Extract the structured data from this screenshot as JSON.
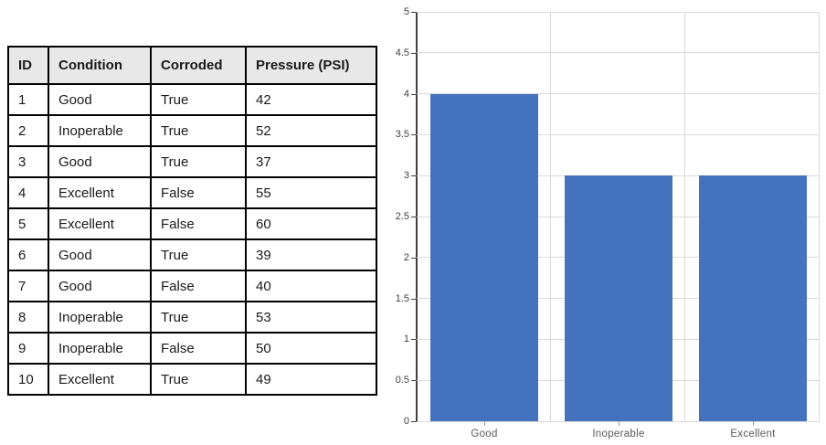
{
  "table": {
    "headers": [
      "ID",
      "Condition",
      "Corroded",
      "Pressure (PSI)"
    ],
    "rows": [
      [
        "1",
        "Good",
        "True",
        "42"
      ],
      [
        "2",
        "Inoperable",
        "True",
        "52"
      ],
      [
        "3",
        "Good",
        "True",
        "37"
      ],
      [
        "4",
        "Excellent",
        "False",
        "55"
      ],
      [
        "5",
        "Excellent",
        "False",
        "60"
      ],
      [
        "6",
        "Good",
        "True",
        "39"
      ],
      [
        "7",
        "Good",
        "False",
        "40"
      ],
      [
        "8",
        "Inoperable",
        "True",
        "53"
      ],
      [
        "9",
        "Inoperable",
        "False",
        "50"
      ],
      [
        "10",
        "Excellent",
        "True",
        "49"
      ]
    ]
  },
  "chart_data": {
    "type": "bar",
    "title": "",
    "xlabel": "",
    "ylabel": "",
    "categories": [
      "Good",
      "Inoperable",
      "Excellent"
    ],
    "values": [
      4,
      3,
      3
    ],
    "ylim": [
      0,
      5
    ],
    "ytick_step": 0.5,
    "yticks": [
      "0",
      "0.5",
      "1",
      "1.5",
      "2",
      "2.5",
      "3",
      "3.5",
      "4",
      "4.5",
      "5"
    ],
    "grid": true,
    "legend_position": "none",
    "bar_color": "#4472BC",
    "gridline_color": "#D9D9D9",
    "axis_color": "#404040",
    "x_label_color": "#595959"
  }
}
